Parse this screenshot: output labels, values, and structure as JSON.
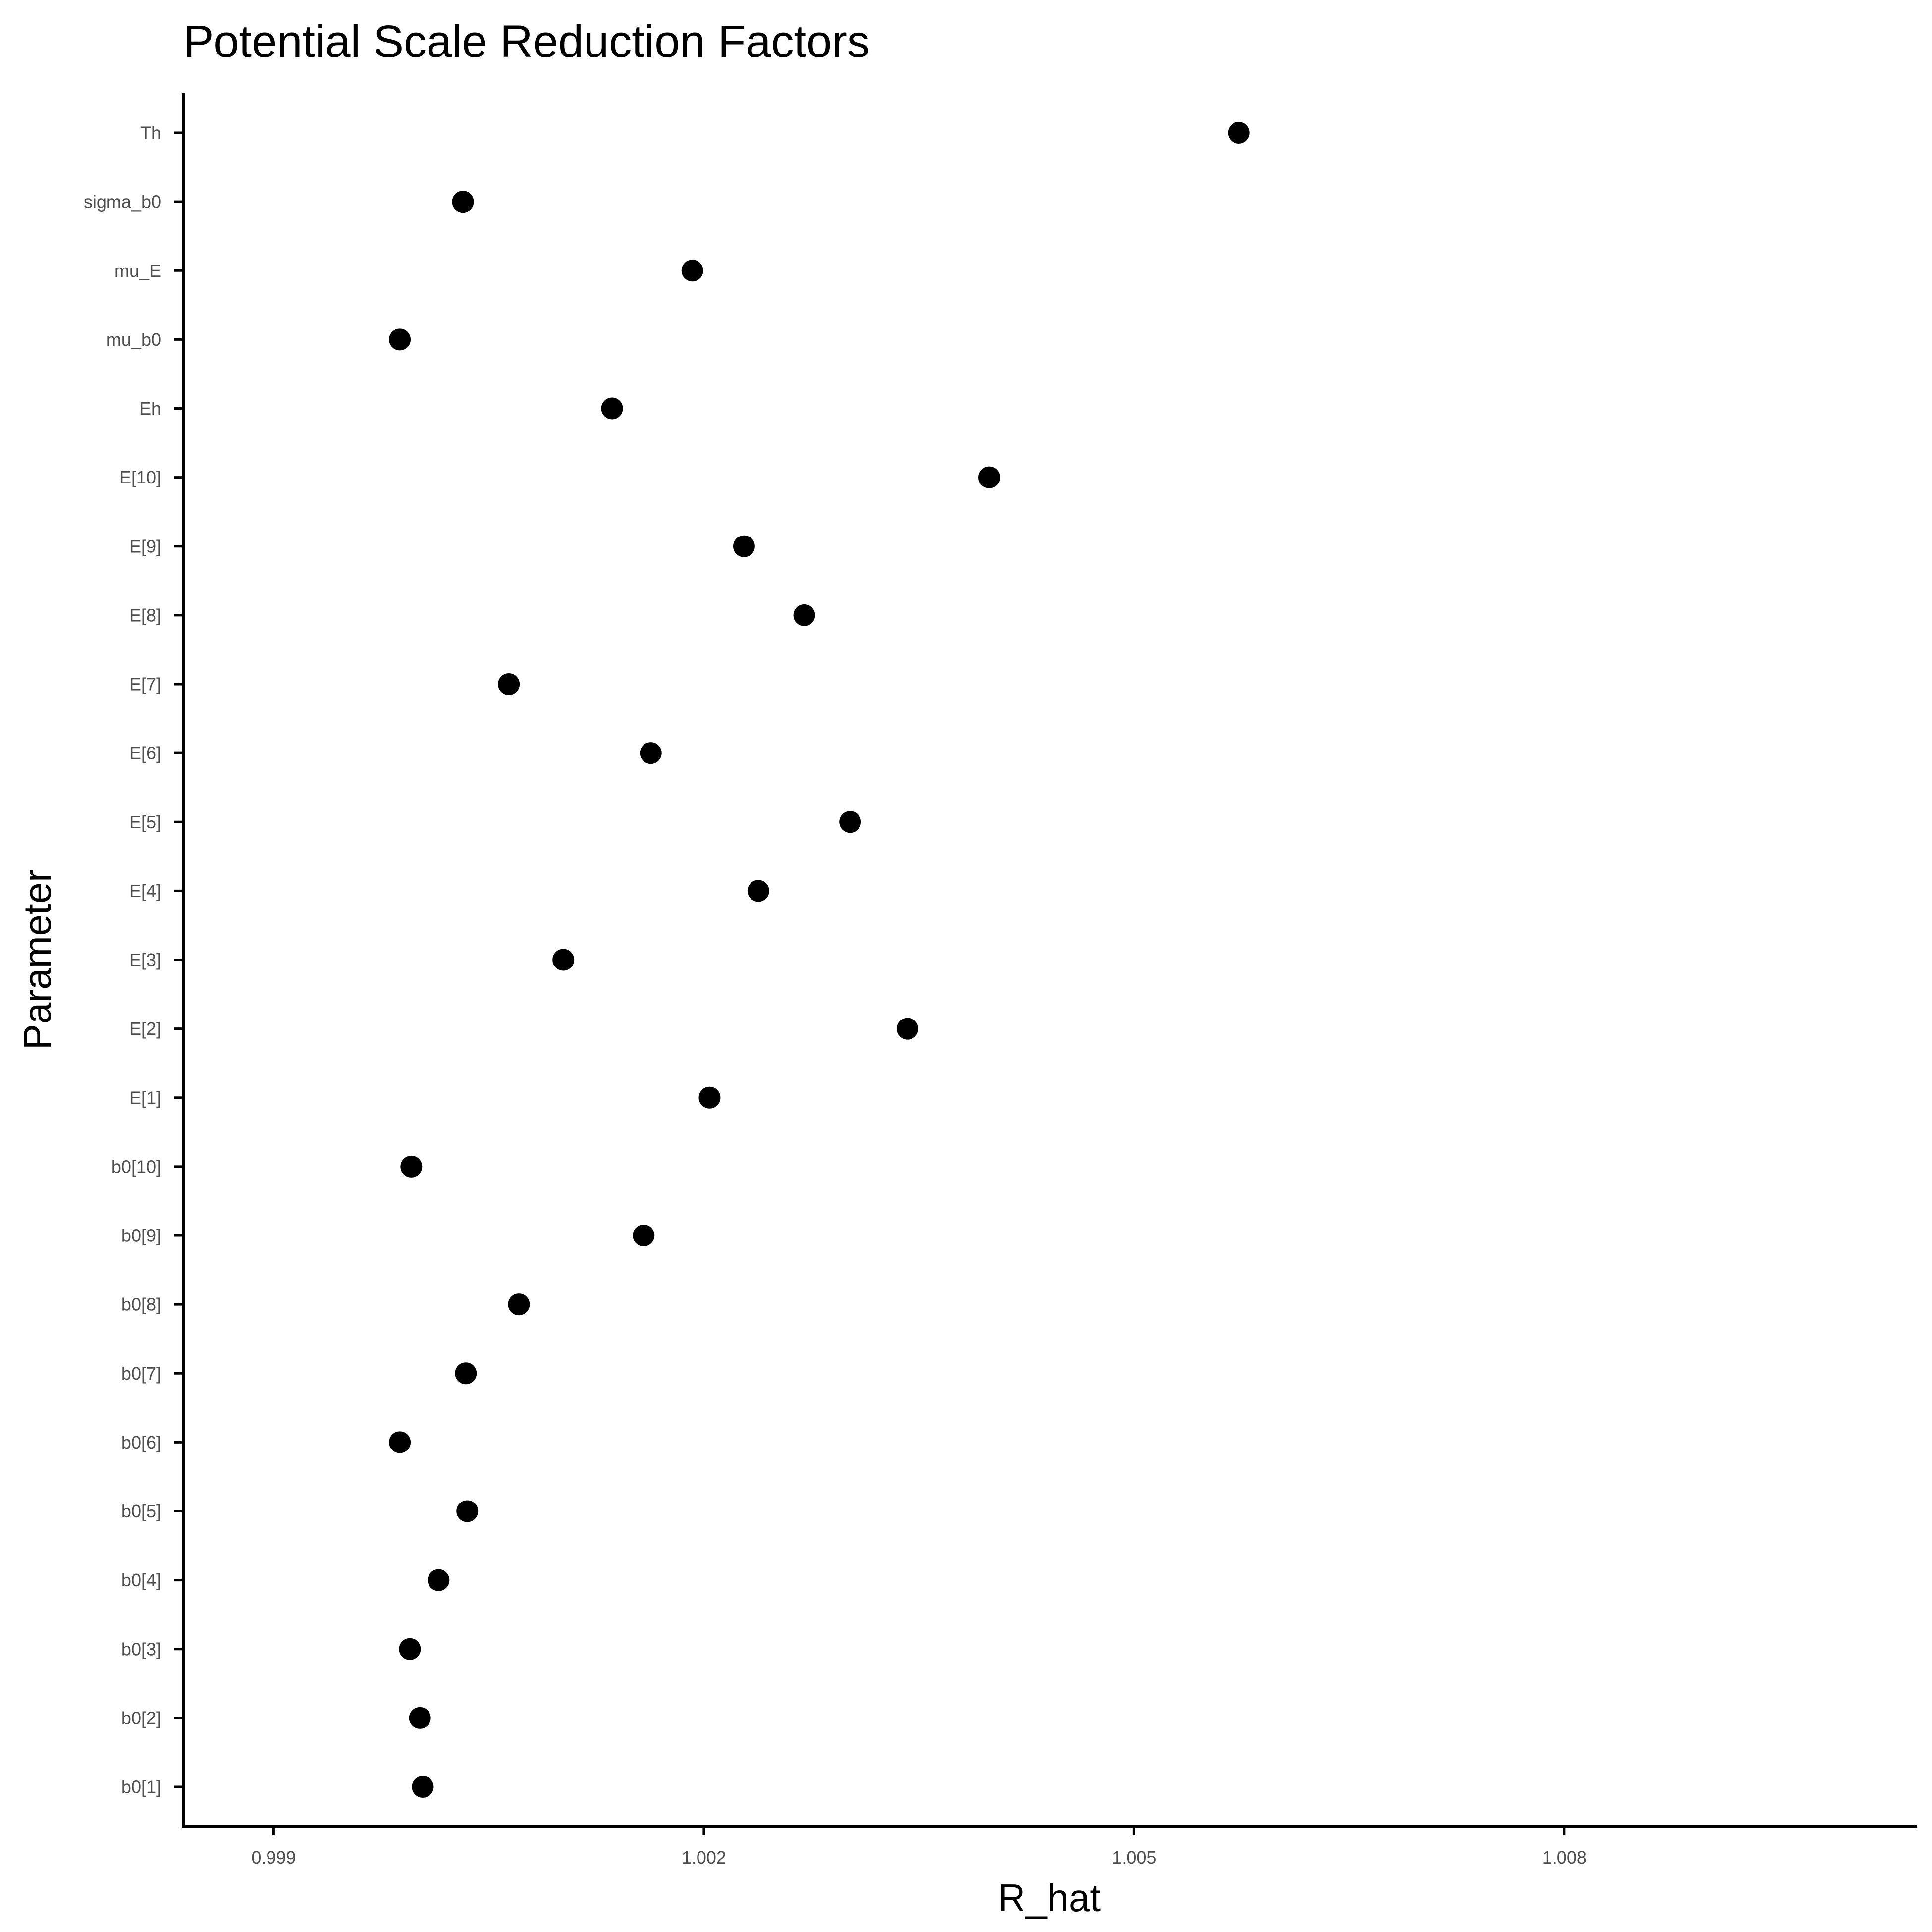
{
  "chart_data": {
    "type": "scatter",
    "title": "Potential Scale Reduction Factors",
    "xlabel": "R_hat",
    "ylabel": "Parameter",
    "xlim": [
      0.99837,
      1.01046
    ],
    "x_ticks": [
      0.999,
      1.002,
      1.005,
      1.008
    ],
    "x_tick_labels": [
      "0.999",
      "1.002",
      "1.005",
      "1.008"
    ],
    "grid": false,
    "legend": "none",
    "point_color": "#000000",
    "categories": [
      "b0[1]",
      "b0[2]",
      "b0[3]",
      "b0[4]",
      "b0[5]",
      "b0[6]",
      "b0[7]",
      "b0[8]",
      "b0[9]",
      "b0[10]",
      "E[1]",
      "E[2]",
      "E[3]",
      "E[4]",
      "E[5]",
      "E[6]",
      "E[7]",
      "E[8]",
      "E[9]",
      "E[10]",
      "Eh",
      "mu_b0",
      "mu_E",
      "sigma_b0",
      "Th"
    ],
    "values": [
      1.00004,
      1.00002,
      0.99995,
      1.00015,
      1.00035,
      0.99988,
      1.00034,
      1.00071,
      1.00158,
      0.99996,
      1.00204,
      1.00342,
      1.00102,
      1.00238,
      1.00302,
      1.00163,
      1.00064,
      1.0027,
      1.00228,
      1.00399,
      1.00136,
      0.99988,
      1.00192,
      1.00032,
      1.00573
    ]
  }
}
